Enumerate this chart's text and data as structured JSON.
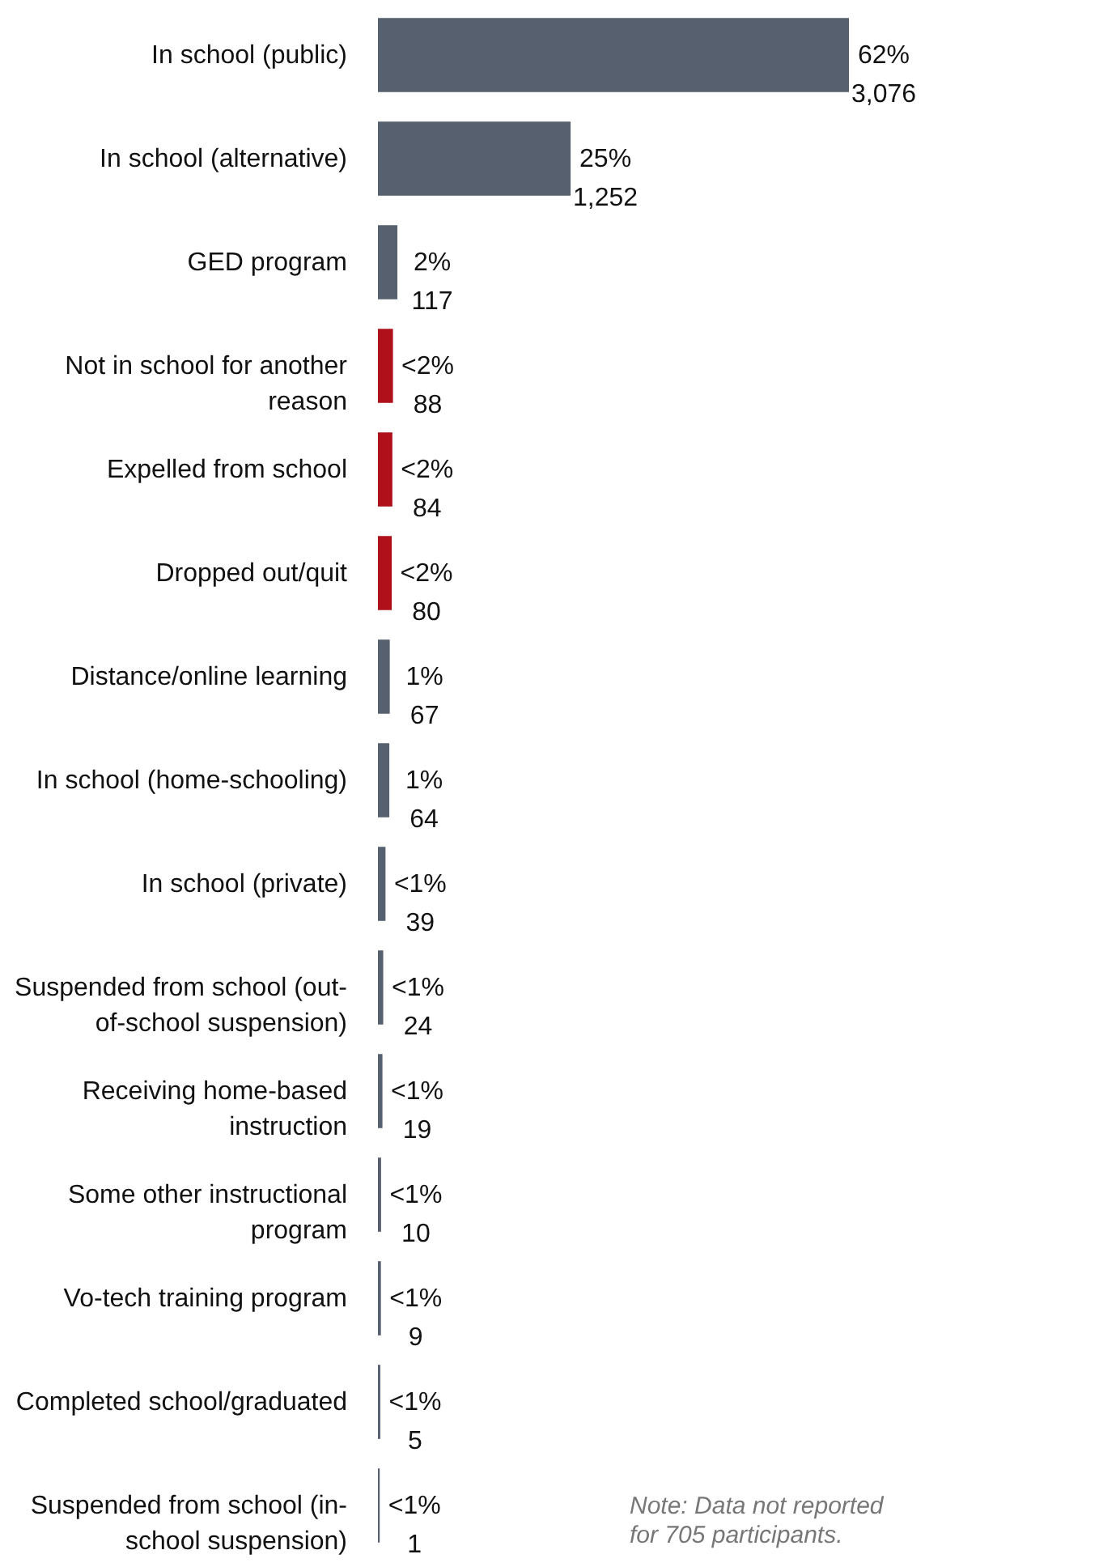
{
  "chart_data": {
    "type": "bar",
    "orientation": "horizontal",
    "categories": [
      "In school (public)",
      "In school (alternative)",
      "GED program",
      "Not in school for another reason",
      "Expelled from school",
      "Dropped out/quit",
      "Distance/online learning",
      "In school (home-schooling)",
      "In school (private)",
      "Suspended from school (out-of-school suspension)",
      "Receiving home-based instruction",
      "Some other instructional program",
      "Vo-tech training program",
      "Completed school/graduated",
      "Suspended from school (in-school suspension)"
    ],
    "values": [
      3076,
      1252,
      117,
      88,
      84,
      80,
      67,
      64,
      39,
      24,
      19,
      10,
      9,
      5,
      1
    ],
    "colors": [
      "#56606e",
      "#56606e",
      "#56606e",
      "#b0101a",
      "#b0101a",
      "#b0101a",
      "#56606e",
      "#56606e",
      "#56606e",
      "#56606e",
      "#56606e",
      "#56606e",
      "#56606e",
      "#56606e",
      "#56606e"
    ],
    "value_labels": [
      "62%\n3,076",
      "25%\n1,252",
      "2%\n117",
      "<2%\n88",
      "<2%\n84",
      "<2%\n80",
      "1%\n67",
      "1%\n64",
      "<1%\n39",
      "<1%\n24",
      "<1%\n19",
      "<1%\n10",
      "<1%\n9",
      "<1%\n5",
      "<1%\n1"
    ],
    "annotations": [
      "Note: Data not reported for 705 participants."
    ]
  }
}
